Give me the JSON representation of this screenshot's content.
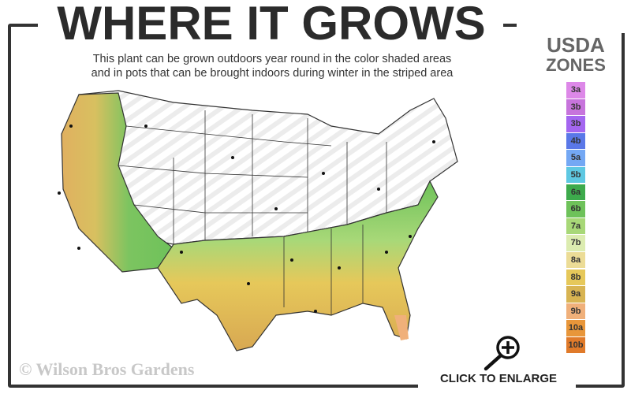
{
  "title": "WHERE IT GROWS",
  "subtitle": [
    "This plant can be grown outdoors year round in the color shaded areas",
    "and in pots that can be brought indoors during winter in the striped area"
  ],
  "zones": {
    "title_line1": "USDA",
    "title_line2": "ZONES",
    "items": [
      {
        "label": "3a",
        "color": "#dd88e8"
      },
      {
        "label": "3b",
        "color": "#c774dc"
      },
      {
        "label": "3b",
        "color": "#a466f0"
      },
      {
        "label": "4b",
        "color": "#5a78e8"
      },
      {
        "label": "5a",
        "color": "#74a8f4"
      },
      {
        "label": "5b",
        "color": "#5ec8e2"
      },
      {
        "label": "6a",
        "color": "#3daa4c"
      },
      {
        "label": "6b",
        "color": "#6ec25a"
      },
      {
        "label": "7a",
        "color": "#a8d878"
      },
      {
        "label": "7b",
        "color": "#dcecb0"
      },
      {
        "label": "8a",
        "color": "#ecdc96"
      },
      {
        "label": "8b",
        "color": "#e6c85a"
      },
      {
        "label": "9a",
        "color": "#d8b452"
      },
      {
        "label": "9b",
        "color": "#f0b07a"
      },
      {
        "label": "10a",
        "color": "#e8963a"
      },
      {
        "label": "10b",
        "color": "#e07a2a"
      }
    ]
  },
  "copyright": "© Wilson Bros Gardens",
  "enlarge_label": "CLICK TO ENLARGE"
}
